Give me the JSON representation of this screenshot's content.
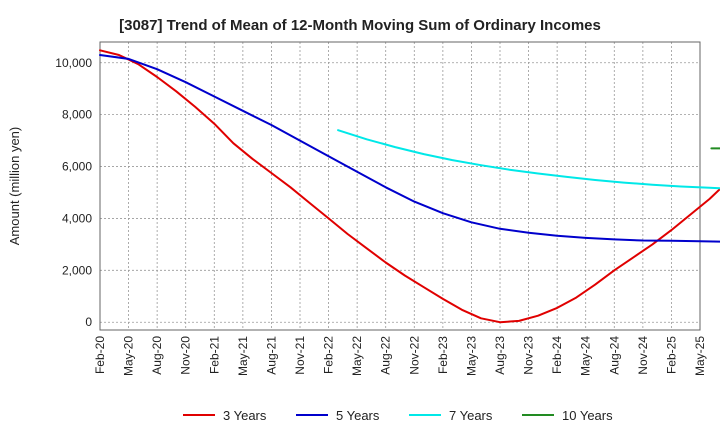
{
  "chart_data": {
    "type": "line",
    "title": "[3087]  Trend of Mean of 12-Month Moving Sum of Ordinary Incomes",
    "xlabel": "",
    "ylabel": "Amount (million yen)",
    "ylim": [
      -300,
      10800
    ],
    "yticks": [
      0,
      2000,
      4000,
      6000,
      8000,
      10000
    ],
    "ytick_labels": [
      "0",
      "2,000",
      "4,000",
      "6,000",
      "8,000",
      "10,000"
    ],
    "x_start": "Feb-20",
    "x_end": "May-25",
    "tick_labels": [
      "Feb-20",
      "May-20",
      "Aug-20",
      "Nov-20",
      "Feb-21",
      "May-21",
      "Aug-21",
      "Nov-21",
      "Feb-22",
      "May-22",
      "Aug-22",
      "Nov-22",
      "Feb-23",
      "May-23",
      "Aug-23",
      "Nov-23",
      "Feb-24",
      "May-24",
      "Aug-24",
      "Nov-24",
      "Feb-25",
      "May-25"
    ],
    "grid": true,
    "legend_position": "bottom",
    "series": [
      {
        "name": "3 Years",
        "color": "#e00000",
        "points": [
          [
            0,
            10480
          ],
          [
            2,
            10300
          ],
          [
            4,
            9950
          ],
          [
            6,
            9450
          ],
          [
            8,
            8900
          ],
          [
            10,
            8300
          ],
          [
            12,
            7650
          ],
          [
            14,
            6900
          ],
          [
            16,
            6300
          ],
          [
            18,
            5750
          ],
          [
            20,
            5200
          ],
          [
            22,
            4600
          ],
          [
            24,
            4000
          ],
          [
            26,
            3400
          ],
          [
            28,
            2850
          ],
          [
            30,
            2300
          ],
          [
            32,
            1800
          ],
          [
            34,
            1350
          ],
          [
            36,
            900
          ],
          [
            38,
            480
          ],
          [
            40,
            150
          ],
          [
            42,
            0
          ],
          [
            44,
            50
          ],
          [
            46,
            250
          ],
          [
            48,
            550
          ],
          [
            50,
            950
          ],
          [
            52,
            1450
          ],
          [
            54,
            2000
          ],
          [
            56,
            2500
          ],
          [
            58,
            3000
          ],
          [
            60,
            3550
          ],
          [
            62,
            4150
          ],
          [
            64,
            4750
          ],
          [
            66,
            5450
          ]
        ]
      },
      {
        "name": "5 Years",
        "color": "#0000cc",
        "points": [
          [
            0,
            10300
          ],
          [
            3,
            10150
          ],
          [
            6,
            9750
          ],
          [
            9,
            9250
          ],
          [
            12,
            8700
          ],
          [
            15,
            8150
          ],
          [
            18,
            7600
          ],
          [
            21,
            7000
          ],
          [
            24,
            6400
          ],
          [
            27,
            5800
          ],
          [
            30,
            5200
          ],
          [
            33,
            4650
          ],
          [
            36,
            4200
          ],
          [
            39,
            3850
          ],
          [
            42,
            3600
          ],
          [
            45,
            3450
          ],
          [
            48,
            3330
          ],
          [
            51,
            3250
          ],
          [
            54,
            3190
          ],
          [
            57,
            3150
          ],
          [
            60,
            3140
          ],
          [
            63,
            3120
          ],
          [
            66,
            3100
          ]
        ]
      },
      {
        "name": "7 Years",
        "color": "#00e8e8",
        "points": [
          [
            25,
            7400
          ],
          [
            28,
            7050
          ],
          [
            31,
            6750
          ],
          [
            34,
            6480
          ],
          [
            37,
            6250
          ],
          [
            40,
            6050
          ],
          [
            43,
            5880
          ],
          [
            46,
            5730
          ],
          [
            49,
            5600
          ],
          [
            52,
            5480
          ],
          [
            55,
            5380
          ],
          [
            58,
            5300
          ],
          [
            61,
            5230
          ],
          [
            64,
            5180
          ],
          [
            66,
            5150
          ]
        ]
      },
      {
        "name": "10 Years",
        "color": "#228b22",
        "points": [
          [
            64.2,
            6700
          ],
          [
            66,
            6700
          ]
        ]
      }
    ]
  }
}
